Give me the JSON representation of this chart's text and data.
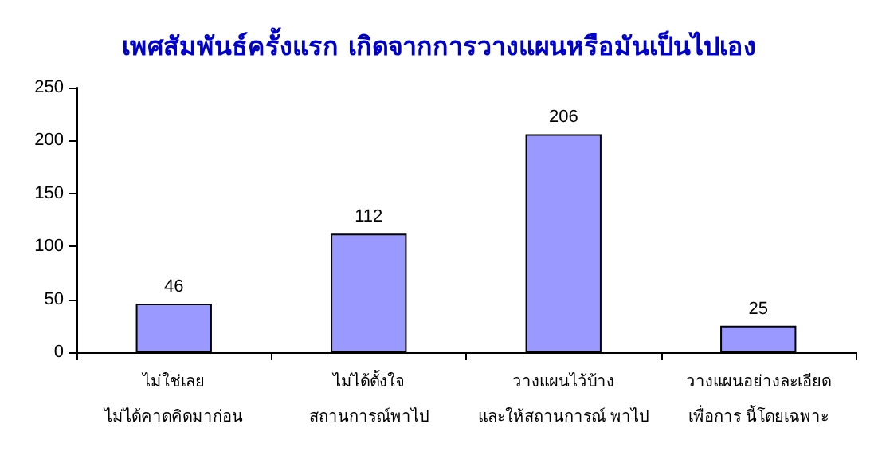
{
  "chart_data": {
    "type": "bar",
    "title": "เพศสัมพันธ์ครั้งแรก เกิดจากการวางแผนหรือมันเป็นไปเอง",
    "categories": [
      "ไม่ใช่เลย\nไม่ได้คาดคิดมาก่อน",
      "ไม่ได้ตั้งใจ\nสถานการณ์พาไป",
      "วางแผนไว้บ้าง\nและให้สถานการณ์ พาไป",
      "วางแผนอย่างละเอียด\nเพื่อการ นี้โดยเฉพาะ"
    ],
    "values": [
      46,
      112,
      206,
      25
    ],
    "color": "#9999ff",
    "ylim": [
      0,
      250
    ],
    "yticks": [
      0,
      50,
      100,
      150,
      200,
      250
    ],
    "grid": false,
    "data_labels": true
  }
}
